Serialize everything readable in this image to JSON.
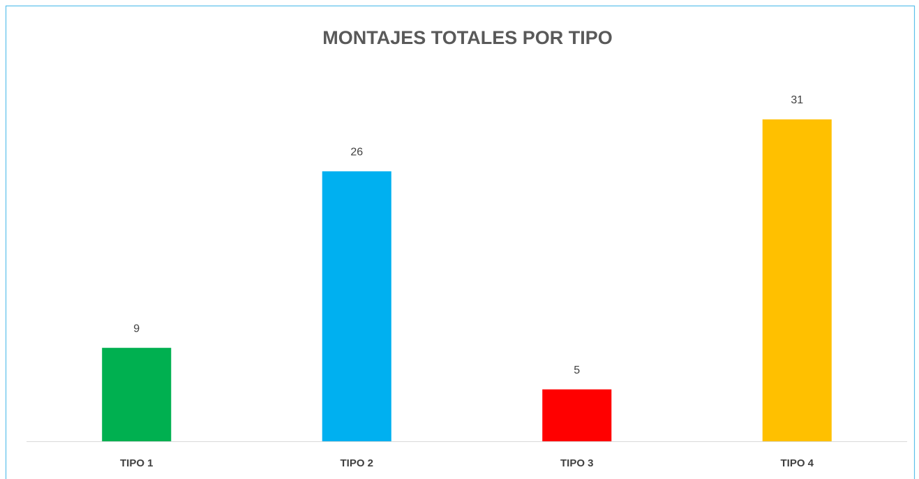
{
  "chart_data": {
    "type": "bar",
    "title": "MONTAJES TOTALES POR TIPO",
    "categories": [
      "TIPO 1",
      "TIPO 2",
      "TIPO 3",
      "TIPO 4"
    ],
    "values": [
      9,
      26,
      5,
      31
    ],
    "colors": [
      "#00b050",
      "#00b0f0",
      "#ff0000",
      "#ffc000"
    ],
    "grid": false
  }
}
